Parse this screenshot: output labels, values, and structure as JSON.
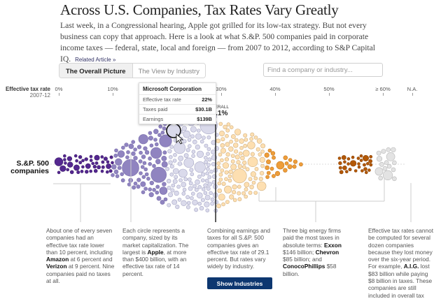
{
  "header": {
    "title": "Across U.S. Companies, Tax Rates Vary Greatly",
    "intro": "Last week, in a Congressional hearing, Apple got grilled for its low-tax strategy. But not every business can copy that approach. Here is a look at what S.&P. 500 companies paid in corporate income taxes — federal, state, local and foreign — from 2007 to 2012, according to S&P Capital IQ.",
    "related_link": "Related Article »"
  },
  "tabs": [
    {
      "label": "The Overall Picture",
      "active": true
    },
    {
      "label": "The View by Industry",
      "active": false
    }
  ],
  "search": {
    "placeholder": "Find a company or industry...",
    "value": ""
  },
  "tooltip": {
    "company": "Microsoft Corporation",
    "rows": [
      {
        "label": "Effective tax rate",
        "value": "22%"
      },
      {
        "label": "Taxes paid",
        "value": "$30.1B"
      },
      {
        "label": "Earnings",
        "value": "$139B"
      }
    ]
  },
  "show_industries_label": "Show Industries",
  "colors": {
    "under10": "#54278f",
    "from10to20": "#9084c0",
    "from20to30": "#dadaeb",
    "from30to40": "#fddfb1",
    "from40to50": "#ee9d3a",
    "over50": "#b35806",
    "na": "#e3e3e3",
    "button": "#0d3770"
  },
  "chart_data": {
    "type": "scatter",
    "subtype": "beeswarm-bubble",
    "title": "Effective tax rate",
    "xlabel": "Effective tax rate 2007-12",
    "axis_title": "Effective tax rate",
    "axis_subtitle": "2007-12",
    "x_ticks": [
      "0%",
      "10%",
      "20%",
      "30%",
      "40%",
      "50%",
      "≥ 60%",
      "N.A."
    ],
    "xlim": [
      0,
      60
    ],
    "series_label": "S.&P. 500 companies",
    "overall_reference": {
      "label": "OVERALL",
      "value_label": "29.1%",
      "value": 29.1
    },
    "bubble_size_encodes": "market capitalization",
    "highlighted_company": {
      "name": "Microsoft Corporation",
      "effective_tax_rate": 22,
      "taxes_paid_billion": 30.1,
      "earnings_billion": 139
    },
    "groups": [
      {
        "range": "0-10%",
        "approx_count": 70,
        "color_key": "under10"
      },
      {
        "range": "10-20%",
        "approx_count": 95,
        "color_key": "from10to20"
      },
      {
        "range": "20-30%",
        "approx_count": 150,
        "color_key": "from20to30"
      },
      {
        "range": "30-40%",
        "approx_count": 130,
        "color_key": "from30to40"
      },
      {
        "range": "40-50%",
        "approx_count": 20,
        "color_key": "from40to50"
      },
      {
        "range": "≥50%",
        "approx_count": 30,
        "color_key": "over50"
      },
      {
        "range": "N.A.",
        "approx_count": 35,
        "color_key": "na"
      }
    ],
    "annotations": [
      "About one of every seven companies had an effective tax rate lower than 10 percent, including Amazon at 6 percent and Verizon at 9 percent. Nine companies paid no taxes at all.",
      "Each circle represents a company, sized by its market capitalization. The largest is Apple, at more than $400 billion, with an effective tax rate of 14 percent.",
      "Combining earnings and taxes for all S.&P. 500 companies gives an effective tax rate of 29.1 percent. But rates vary widely by industry.",
      "Three big energy firms paid the most taxes in absolute terms: Exxon $146 billion; Chevron $85 billion; and ConocoPhillips $58 billion.",
      "Effective tax rates cannot be computed for several dozen companies because they lost money over the six-year period. For example, A.I.G. lost $83 billion while paying $8 billion in taxes. These companies are still included in overall tax"
    ]
  },
  "notes": {
    "n1": {
      "a": "About one of every seven companies had an effective tax rate lower than 10 percent, including ",
      "b1": "Amazon",
      "c": " at 6 percent and ",
      "b2": "Verizon",
      "d": " at 9 percent. Nine companies paid no taxes at all."
    },
    "n2": {
      "a": "Each circle represents a company, sized by its market capitalization. The largest is ",
      "b1": "Apple",
      "c": ", at more than $400 billion, with an effective tax rate of 14 percent."
    },
    "n3": {
      "a": "Combining earnings and taxes for all S.&P. 500 companies gives an effective tax rate of 29.1 percent. But rates vary widely by industry."
    },
    "n4": {
      "a": "Three big energy firms paid the most taxes in absolute terms: ",
      "b1": "Exxon",
      "c": " $146 billion; ",
      "b2": "Chevron",
      "d": " $85 billion; and ",
      "b3": "ConocoPhillips",
      "e": " $58 billion."
    },
    "n5": {
      "a": "Effective tax rates cannot be computed for several dozen companies because they lost money over the six-year period. For example, ",
      "b1": "A.I.G.",
      "c": " lost $83 billion while paying $8 billion in taxes. These companies are still included in overall tax"
    }
  }
}
